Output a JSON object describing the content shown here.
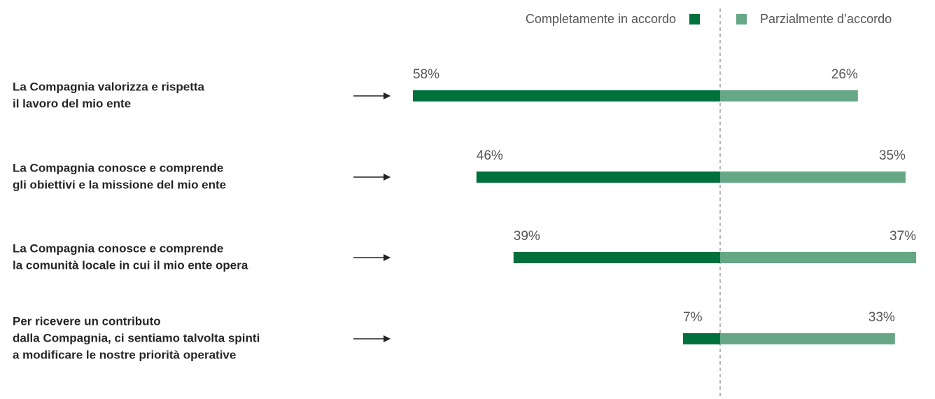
{
  "chart_data": {
    "type": "diverging-bar",
    "categories": [
      [
        "La Compagnia valorizza e rispetta",
        "il lavoro del mio ente"
      ],
      [
        "La Compagnia conosce e comprende",
        "gli obiettivi e la missione del mio ente"
      ],
      [
        "La Compagnia conosce e comprende",
        "la comunità locale in cui il mio ente opera"
      ],
      [
        "Per ricevere un contributo",
        "dalla Compagnia, ci sentiamo talvolta spinti",
        "a modificare le nostre priorità operative"
      ]
    ],
    "series": [
      {
        "name": "Completamente in accordo",
        "color": "#00703c",
        "values": [
          58,
          46,
          39,
          7
        ],
        "value_labels": [
          "58%",
          "46%",
          "39%",
          "7%"
        ]
      },
      {
        "name": "Parzialmente d’accordo",
        "color": "#66a885",
        "values": [
          26,
          35,
          37,
          33
        ],
        "value_labels": [
          "26%",
          "35%",
          "37%",
          "33%"
        ]
      }
    ]
  }
}
